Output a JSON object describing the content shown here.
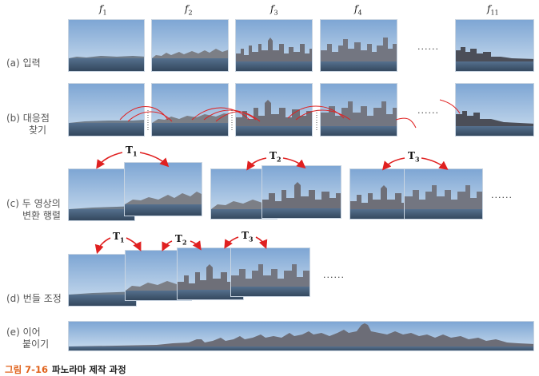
{
  "frame_labels": {
    "f1": {
      "base": "f",
      "sub": "1"
    },
    "f2": {
      "base": "f",
      "sub": "2"
    },
    "f3": {
      "base": "f",
      "sub": "3"
    },
    "f4": {
      "base": "f",
      "sub": "4"
    },
    "f11": {
      "base": "f",
      "sub": "11"
    }
  },
  "rows": {
    "a": {
      "label_line1": "(a) 입력",
      "label_line2": ""
    },
    "b": {
      "label_line1": "(b) 대응점",
      "label_line2": "찾기"
    },
    "c": {
      "label_line1": "(c) 두 영상의",
      "label_line2": "변환 행렬"
    },
    "d": {
      "label_line1": "(d) 번들 조정",
      "label_line2": ""
    },
    "e": {
      "label_line1": "(e) 이어",
      "label_line2": "붙이기"
    }
  },
  "ellipsis": "......",
  "transforms": {
    "t1": {
      "base": "T",
      "sub": "1"
    },
    "t2": {
      "base": "T",
      "sub": "2"
    },
    "t3": {
      "base": "T",
      "sub": "3"
    }
  },
  "caption": {
    "number": "그림 7-16",
    "text": "파노라마 제작 과정"
  },
  "colors": {
    "arrow": "#e02020",
    "sky_top": "#7ea6d4",
    "sky_bottom": "#c7daee",
    "water": "#3f5670"
  }
}
